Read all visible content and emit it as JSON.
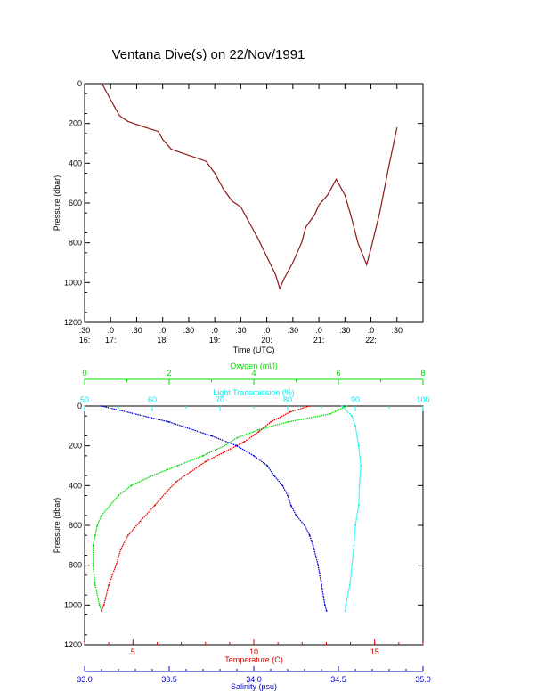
{
  "title": "Ventana Dive(s) on 22/Nov/1991",
  "colors": {
    "axis": "#000000",
    "oxygen": "#00dd00",
    "transmission": "#00eeee",
    "temperature": "#dd0000",
    "salinity": "#0000cc",
    "track": "#8b1a1a"
  },
  "chart_data": [
    {
      "type": "line",
      "title": "Ventana Dive(s) on 22/Nov/1991",
      "xlabel": "Time (UTC)",
      "ylabel": "Pressure (dbar)",
      "x_ticks": [
        {
          "minute": ":30",
          "hour": "16:"
        },
        {
          "minute": ":0",
          "hour": "17:"
        },
        {
          "minute": ":30",
          "hour": ""
        },
        {
          "minute": ":0",
          "hour": "18:"
        },
        {
          "minute": ":30",
          "hour": ""
        },
        {
          "minute": ":0",
          "hour": "19:"
        },
        {
          "minute": ":30",
          "hour": ""
        },
        {
          "minute": ":0",
          "hour": "20:"
        },
        {
          "minute": ":30",
          "hour": ""
        },
        {
          "minute": ":0",
          "hour": "21:"
        },
        {
          "minute": ":30",
          "hour": ""
        },
        {
          "minute": ":0",
          "hour": "22:"
        },
        {
          "minute": ":30",
          "hour": ""
        }
      ],
      "xlim": [
        "16:30",
        "23:00"
      ],
      "ylim": [
        1200,
        0
      ],
      "y_ticks": [
        0,
        200,
        400,
        600,
        800,
        1000,
        1200
      ],
      "series": [
        {
          "x": [
            "16:50",
            "17:00",
            "17:10",
            "17:20",
            "17:40",
            "17:55",
            "18:00",
            "18:10",
            "18:30",
            "18:50",
            "19:00",
            "19:10",
            "19:20",
            "19:30",
            "19:50",
            "20:00",
            "20:10",
            "20:15",
            "20:20",
            "20:30",
            "20:40",
            "20:45",
            "20:55",
            "21:00",
            "21:10",
            "21:20",
            "21:30",
            "21:38",
            "21:45",
            "21:55",
            "22:00",
            "22:10",
            "22:20",
            "22:30"
          ],
          "y": [
            0,
            80,
            160,
            190,
            220,
            240,
            280,
            330,
            360,
            390,
            450,
            530,
            590,
            620,
            780,
            870,
            960,
            1030,
            980,
            900,
            800,
            720,
            660,
            610,
            560,
            480,
            560,
            680,
            800,
            910,
            830,
            650,
            430,
            220
          ]
        }
      ]
    },
    {
      "type": "line",
      "ylabel": "Pressure (dbar)",
      "ylim": [
        1200,
        0
      ],
      "y_ticks": [
        0,
        200,
        400,
        600,
        800,
        1000,
        1200
      ],
      "axes": {
        "oxygen": {
          "label": "Oxygen (ml/l)",
          "range": [
            0,
            8
          ],
          "ticks": [
            "0",
            "2",
            "4",
            "6",
            "8"
          ]
        },
        "transmission": {
          "label": "Light Transmission (%)",
          "range": [
            50,
            100
          ],
          "ticks": [
            "50",
            "60",
            "70",
            "80",
            "90",
            "100"
          ]
        },
        "temperature": {
          "label": "Temperature (C)",
          "range": [
            3,
            17
          ],
          "ticks": [
            "5",
            "10",
            "15"
          ]
        },
        "salinity": {
          "label": "Salinity (psu)",
          "range": [
            33.0,
            35.0
          ],
          "ticks": [
            "33.0",
            "33.5",
            "34.0",
            "34.5",
            "35.0"
          ]
        }
      },
      "series": [
        {
          "axis": "oxygen",
          "pressure": [
            0,
            40,
            80,
            120,
            160,
            200,
            250,
            300,
            350,
            400,
            450,
            500,
            550,
            600,
            650,
            700,
            800,
            900,
            1000,
            1030
          ],
          "values": [
            6.2,
            5.8,
            4.8,
            4.1,
            3.6,
            3.3,
            2.8,
            2.2,
            1.6,
            1.1,
            0.8,
            0.6,
            0.4,
            0.3,
            0.25,
            0.2,
            0.2,
            0.25,
            0.35,
            0.4
          ]
        },
        {
          "axis": "transmission",
          "pressure": [
            0,
            50,
            100,
            200,
            300,
            400,
            500,
            600,
            700,
            800,
            900,
            1000,
            1030
          ],
          "values": [
            88,
            89.5,
            90,
            90.5,
            90.8,
            90.6,
            90.5,
            90,
            89.8,
            89.5,
            89.2,
            88.6,
            88.5
          ]
        },
        {
          "axis": "temperature",
          "pressure": [
            0,
            30,
            80,
            130,
            180,
            230,
            280,
            330,
            380,
            430,
            500,
            580,
            650,
            720,
            800,
            900,
            1000,
            1030
          ],
          "values": [
            12.3,
            11.5,
            10.7,
            10.2,
            9.6,
            8.8,
            8.0,
            7.4,
            6.8,
            6.4,
            5.9,
            5.3,
            4.8,
            4.5,
            4.3,
            4.0,
            3.8,
            3.7
          ]
        },
        {
          "axis": "salinity",
          "pressure": [
            0,
            80,
            150,
            200,
            250,
            300,
            350,
            400,
            450,
            500,
            550,
            600,
            650,
            700,
            800,
            900,
            1000,
            1030
          ],
          "values": [
            33.1,
            33.5,
            33.75,
            33.9,
            34.0,
            34.08,
            34.12,
            34.17,
            34.2,
            34.22,
            34.25,
            34.3,
            34.33,
            34.35,
            34.38,
            34.4,
            34.42,
            34.43
          ]
        }
      ]
    }
  ]
}
